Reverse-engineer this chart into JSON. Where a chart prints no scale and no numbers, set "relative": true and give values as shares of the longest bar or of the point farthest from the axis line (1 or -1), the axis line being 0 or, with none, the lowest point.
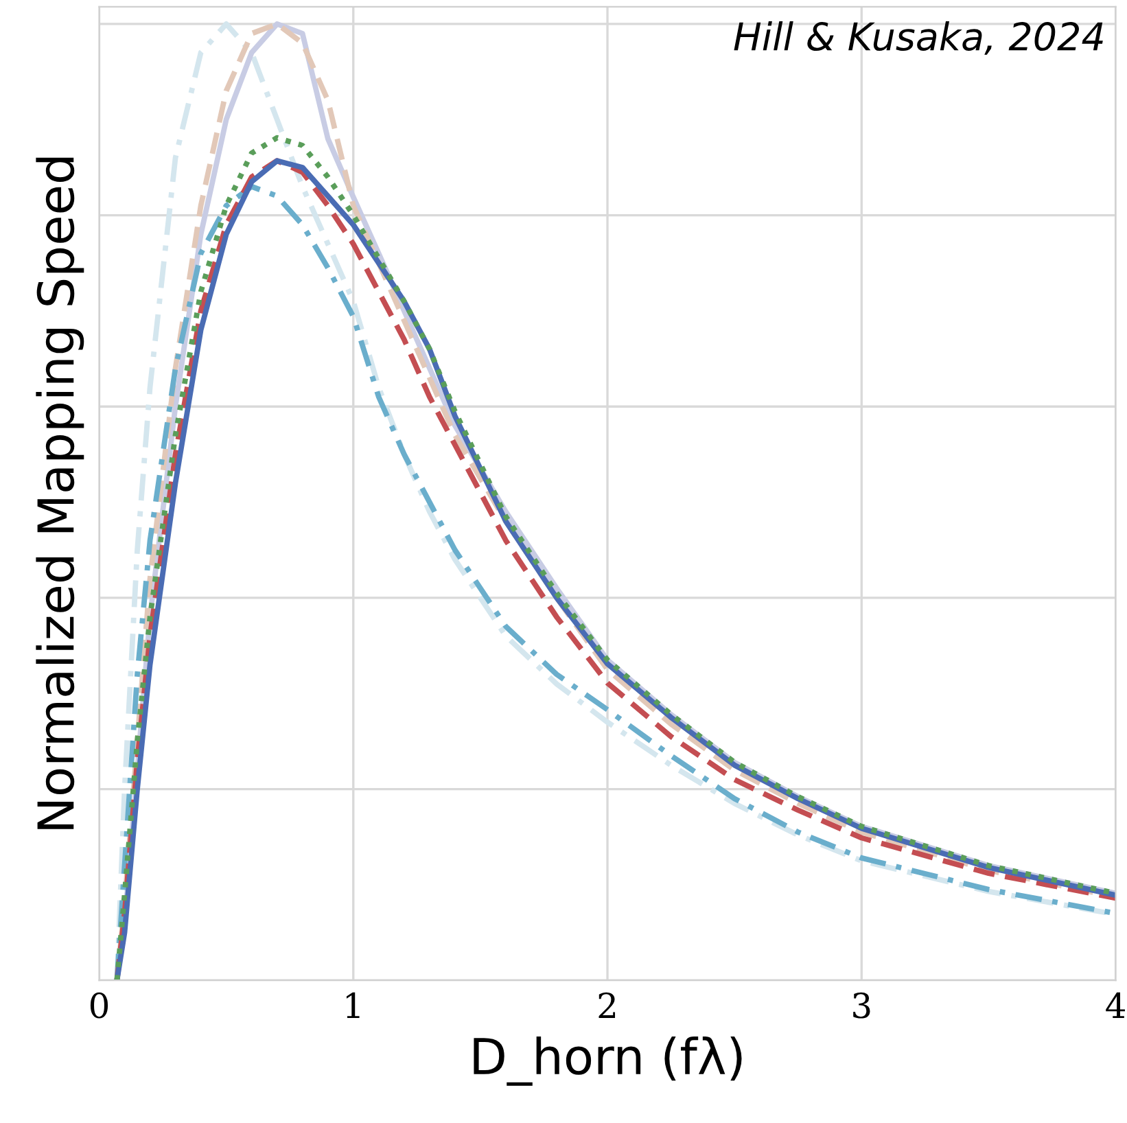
{
  "chart_data": {
    "type": "line",
    "relative": true,
    "xlabel": "D_horn (fλ)",
    "ylabel": "Normalized Mapping Speed",
    "annotations": [
      "Hill & Kusaka, 2024"
    ],
    "x": [
      0.07,
      0.1,
      0.15,
      0.2,
      0.3,
      0.4,
      0.5,
      0.6,
      0.7,
      0.8,
      0.9,
      1.0,
      1.1,
      1.2,
      1.3,
      1.4,
      1.6,
      1.8,
      2.0,
      2.25,
      2.5,
      2.75,
      3.0,
      3.5,
      4.0
    ],
    "xlim": [
      0,
      4
    ],
    "xticks": [
      0,
      1,
      2,
      3,
      4
    ],
    "grid": true,
    "legend": false,
    "series": [
      {
        "color": "#d4e6ee",
        "line_style": "dashdot",
        "values": [
          0,
          0.2,
          0.45,
          0.62,
          0.86,
          0.97,
          1.0,
          0.97,
          0.9,
          0.83,
          0.77,
          0.71,
          0.62,
          0.55,
          0.49,
          0.44,
          0.36,
          0.31,
          0.27,
          0.225,
          0.185,
          0.152,
          0.125,
          0.093,
          0.069
        ]
      },
      {
        "color": "#c8cce4",
        "line_style": "solid",
        "values": [
          0,
          0.06,
          0.22,
          0.38,
          0.6,
          0.78,
          0.9,
          0.97,
          1.0,
          0.99,
          0.88,
          0.819,
          0.76,
          0.7,
          0.64,
          0.58,
          0.49,
          0.41,
          0.335,
          0.278,
          0.228,
          0.192,
          0.161,
          0.12,
          0.091
        ]
      },
      {
        "color": "#e2c8b8",
        "line_style": "dashed",
        "values": [
          0,
          0.08,
          0.25,
          0.42,
          0.64,
          0.81,
          0.93,
          0.99,
          1.0,
          0.98,
          0.92,
          0.81,
          0.75,
          0.69,
          0.63,
          0.57,
          0.48,
          0.4,
          0.325,
          0.268,
          0.22,
          0.185,
          0.155,
          0.115,
          0.087
        ]
      },
      {
        "color": "#6aaecc",
        "line_style": "dashdot",
        "values": [
          0,
          0.12,
          0.32,
          0.46,
          0.64,
          0.76,
          0.81,
          0.83,
          0.82,
          0.79,
          0.745,
          0.694,
          0.61,
          0.55,
          0.5,
          0.45,
          0.37,
          0.32,
          0.283,
          0.235,
          0.19,
          0.155,
          0.128,
          0.095,
          0.07
        ]
      },
      {
        "color": "#c44e52",
        "line_style": "dashed",
        "values": [
          0,
          0.07,
          0.23,
          0.36,
          0.55,
          0.7,
          0.79,
          0.84,
          0.857,
          0.845,
          0.81,
          0.77,
          0.72,
          0.67,
          0.61,
          0.56,
          0.46,
          0.38,
          0.311,
          0.255,
          0.21,
          0.178,
          0.149,
          0.112,
          0.086
        ]
      },
      {
        "color": "#4a6cb4",
        "line_style": "solid",
        "values": [
          0,
          0.05,
          0.2,
          0.33,
          0.52,
          0.68,
          0.78,
          0.835,
          0.857,
          0.85,
          0.82,
          0.79,
          0.75,
          0.71,
          0.66,
          0.59,
          0.48,
          0.4,
          0.331,
          0.275,
          0.225,
          0.19,
          0.159,
          0.118,
          0.089
        ]
      },
      {
        "color": "#5a9e5a",
        "line_style": "dotted",
        "values": [
          0,
          0.09,
          0.25,
          0.38,
          0.57,
          0.72,
          0.81,
          0.865,
          0.881,
          0.873,
          0.84,
          0.8,
          0.755,
          0.71,
          0.66,
          0.595,
          0.485,
          0.405,
          0.335,
          0.278,
          0.228,
          0.192,
          0.161,
          0.12,
          0.091
        ]
      }
    ]
  }
}
